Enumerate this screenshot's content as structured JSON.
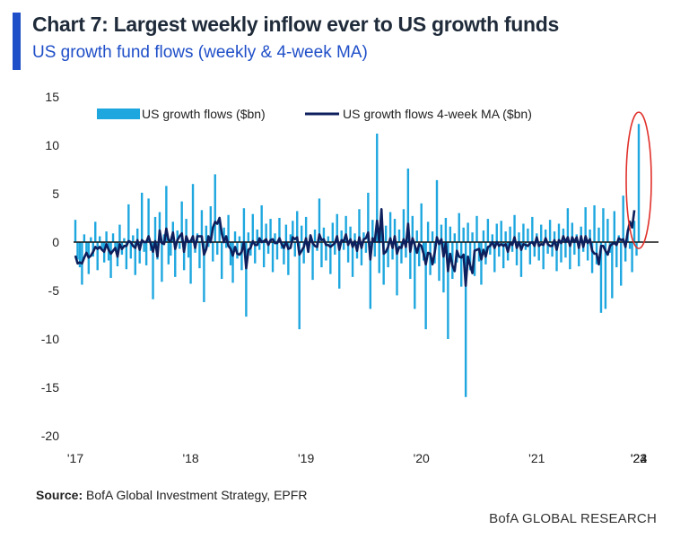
{
  "header": {
    "title": "Chart 7: Largest weekly inflow ever to US growth funds",
    "subtitle": "US growth fund flows (weekly & 4-week MA)"
  },
  "footer": {
    "source_label": "Source:",
    "source_text": "BofA Global Investment Strategy, EPFR",
    "brand": "BofA GLOBAL RESEARCH"
  },
  "colors": {
    "accent": "#1f4fc8",
    "bars": "#1ea7df",
    "ma_line": "#0d1f5c",
    "highlight": "#e0312b"
  },
  "chart_data": {
    "type": "bar",
    "xlabel": "",
    "ylabel": "",
    "ylim": [
      -20,
      15
    ],
    "yticks": [
      -20,
      -15,
      -10,
      -5,
      0,
      5,
      10,
      15
    ],
    "xticks": [
      "'17",
      "'18",
      "'19",
      "'20",
      "'21",
      "'22",
      "'23",
      "'24"
    ],
    "grid": false,
    "legend_position": "top",
    "series": [
      {
        "name": "US growth flows ($bn)",
        "type": "bar",
        "values": [
          2.3,
          -1.8,
          -2.6,
          -4.4,
          0.8,
          -1.2,
          -3.3,
          0.5,
          -1.5,
          2.1,
          -2.9,
          0.6,
          -0.8,
          -2.1,
          1.1,
          -1.9,
          -3.7,
          0.9,
          -0.6,
          -2.5,
          1.8,
          -1.3,
          0.4,
          -2.8,
          3.9,
          -1.7,
          0.7,
          -3.4,
          1.4,
          -2.2,
          5.1,
          -1.0,
          -2.4,
          4.5,
          -0.9,
          -5.9,
          2.6,
          -1.8,
          3.1,
          -4.1,
          0.8,
          5.8,
          -2.3,
          -1.4,
          2.1,
          -3.6,
          1.2,
          -0.7,
          4.2,
          -2.9,
          2.4,
          -1.6,
          -4.3,
          6.0,
          -1.1,
          0.9,
          -2.7,
          3.3,
          -6.2,
          1.7,
          -0.5,
          3.7,
          -2.0,
          7.0,
          -1.3,
          2.2,
          -3.8,
          1.5,
          -0.6,
          2.8,
          -2.4,
          -4.2,
          1.1,
          -1.7,
          0.6,
          -2.9,
          3.5,
          -7.7,
          1.0,
          -1.4,
          2.9,
          -2.2,
          1.3,
          -0.8,
          3.8,
          -2.6,
          1.9,
          -1.2,
          2.4,
          -3.1,
          0.9,
          -1.8,
          2.5,
          -0.7,
          -2.3,
          1.8,
          -3.4,
          0.8,
          2.2,
          -1.5,
          3.2,
          -9.0,
          1.7,
          -2.2,
          2.6,
          -1.1,
          0.7,
          -3.9,
          1.3,
          -0.9,
          4.5,
          -2.6,
          1.5,
          -1.9,
          0.6,
          -3.3,
          2.0,
          -1.3,
          2.9,
          -4.8,
          1.2,
          -0.8,
          2.7,
          -2.1,
          1.6,
          -3.6,
          0.9,
          -1.7,
          3.4,
          -2.4,
          1.0,
          -1.1,
          5.1,
          -6.9,
          2.3,
          -1.5,
          11.2,
          -3.2,
          2.1,
          -4.4,
          1.7,
          -2.6,
          3.1,
          -1.8,
          2.4,
          -5.5,
          1.3,
          -2.2,
          3.4,
          -1.6,
          7.6,
          -3.8,
          2.7,
          -6.9,
          1.2,
          -2.5,
          4.0,
          -1.9,
          -9.0,
          2.1,
          -3.4,
          1.1,
          -2.2,
          6.4,
          -4.0,
          1.8,
          -5.2,
          2.5,
          -10.0,
          1.6,
          -3.8,
          0.9,
          -2.1,
          3.0,
          -4.6,
          1.5,
          -16.0,
          2.0,
          -2.9,
          1.0,
          -3.5,
          2.7,
          -2.0,
          -4.4,
          1.2,
          -2.3,
          2.4,
          -1.3,
          0.8,
          -3.1,
          1.9,
          -1.5,
          2.2,
          -2.7,
          1.1,
          -1.9,
          1.6,
          -1.0,
          2.8,
          -2.4,
          1.0,
          -3.6,
          1.9,
          -0.8,
          1.4,
          -2.3,
          2.6,
          -1.5,
          0.9,
          -1.9,
          1.8,
          -2.8,
          1.3,
          -1.2,
          2.3,
          -1.5,
          1.1,
          -3.0,
          1.9,
          -2.1,
          1.4,
          -1.6,
          3.5,
          -2.8,
          2.0,
          -1.3,
          0.8,
          -2.5,
          1.6,
          -1.0,
          3.6,
          -1.9,
          1.3,
          -3.2,
          3.8,
          -2.3,
          1.5,
          -7.3,
          3.5,
          -6.9,
          2.4,
          -1.1,
          -5.8,
          3.2,
          -2.6,
          0.7,
          -4.5,
          4.8,
          -2.0,
          1.3,
          -0.7,
          -3.1,
          2.2,
          -1.4,
          12.2
        ]
      },
      {
        "name": "US growth flows 4-week MA ($bn)",
        "type": "line",
        "values": [
          -1.4,
          -2.2,
          -2.1,
          -2.2,
          -1.6,
          -1.1,
          -1.6,
          -1.4,
          -1.0,
          -0.5,
          -0.7,
          -0.5,
          -0.8,
          -1.0,
          -0.2,
          -0.8,
          -1.2,
          -0.9,
          -0.6,
          -1.5,
          -0.2,
          -0.7,
          -0.4,
          -0.4,
          0.1,
          0.0,
          -0.4,
          -0.6,
          0.2,
          -0.8,
          0.2,
          0.0,
          0.0,
          0.6,
          -0.2,
          -1.0,
          0.1,
          -1.5,
          1.2,
          -0.1,
          -0.2,
          1.4,
          0.2,
          0.1,
          1.0,
          -0.7,
          0.2,
          0.6,
          0.9,
          -1.0,
          0.6,
          0.0,
          0.1,
          0.6,
          -0.6,
          0.6,
          0.6,
          0.6,
          -1.3,
          -0.7,
          0.6,
          0.0,
          1.5,
          2.1,
          1.9,
          2.5,
          0.9,
          0.0,
          0.6,
          -0.4,
          -0.7,
          -1.4,
          -0.5,
          -1.2,
          -1.3,
          -1.0,
          0.0,
          -2.7,
          -0.8,
          -0.6,
          0.1,
          -0.3,
          -0.3,
          0.4,
          0.0,
          0.1,
          0.3,
          -0.3,
          0.2,
          0.3,
          -0.1,
          -0.1,
          0.4,
          -0.2,
          -0.6,
          0.0,
          -0.7,
          -0.6,
          0.5,
          0.3,
          0.5,
          -1.3,
          -0.9,
          -0.5,
          0.4,
          -1.0,
          0.7,
          -0.1,
          -0.4,
          -0.5,
          0.8,
          0.2,
          0.3,
          -0.3,
          -0.3,
          -0.5,
          -0.3,
          -0.1,
          0.6,
          -0.8,
          0.2,
          0.1,
          0.8,
          -0.3,
          0.3,
          -0.5,
          0.1,
          -0.9,
          0.5,
          -0.6,
          0.3,
          0.4,
          1.0,
          -1.8,
          0.4,
          0.1,
          2.2,
          0.0,
          3.4,
          -1.2,
          -1.0,
          -0.5,
          0.4,
          -0.6,
          0.6,
          -1.2,
          -0.5,
          -0.6,
          0.3,
          -0.5,
          1.9,
          -1.0,
          0.4,
          -0.3,
          -1.1,
          -0.2,
          -0.4,
          -1.2,
          -2.3,
          -1.1,
          -1.2,
          -2.3,
          -1.1,
          0.5,
          -0.2,
          0.3,
          -1.5,
          -0.1,
          -3.0,
          -1.2,
          -2.4,
          -3.0,
          -0.9,
          -1.5,
          -1.6,
          -1.3,
          -4.5,
          -1.5,
          -2.4,
          -3.2,
          -0.9,
          -0.8,
          -0.7,
          -1.8,
          -0.8,
          -1.5,
          -0.5,
          -0.4,
          0.0,
          -0.6,
          0.0,
          -0.4,
          -0.2,
          -0.4,
          -0.2,
          -1.0,
          -0.1,
          -0.3,
          0.5,
          -0.6,
          0.0,
          -0.8,
          -0.2,
          -0.3,
          -0.4,
          -0.1,
          0.0,
          -0.4,
          0.5,
          -0.4,
          -0.2,
          -0.3,
          0.4,
          -0.2,
          -0.4,
          -0.4,
          0.2,
          -0.8,
          0.2,
          -0.1,
          0.6,
          0.0,
          0.5,
          -0.4,
          0.5,
          0.0,
          0.5,
          -0.6,
          0.6,
          -0.5,
          0.6,
          -0.1,
          0.3,
          -0.9,
          -1.2,
          -1.2,
          -2.3,
          -0.4,
          -0.4,
          -0.9,
          -1.3,
          -0.4,
          -0.2,
          -0.1,
          -0.3,
          0.4,
          0.2,
          0.3,
          -0.5,
          1.0,
          2.1,
          1.5,
          3.3
        ]
      }
    ],
    "annotations": [
      {
        "type": "ellipse-highlight",
        "target": "last-bar"
      }
    ]
  }
}
